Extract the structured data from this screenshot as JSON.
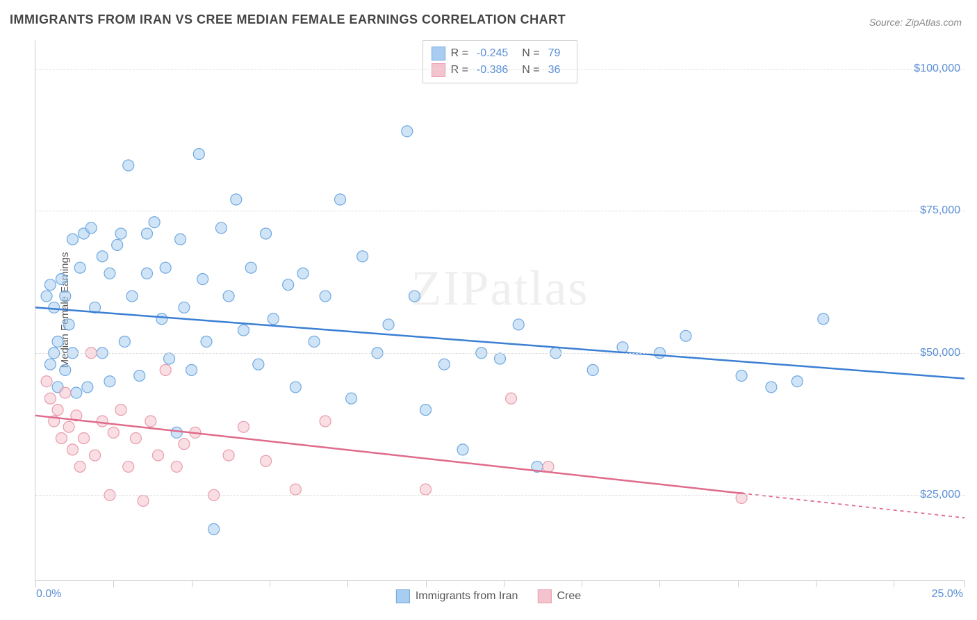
{
  "title": "IMMIGRANTS FROM IRAN VS CREE MEDIAN FEMALE EARNINGS CORRELATION CHART",
  "source": "Source: ZipAtlas.com",
  "ylabel": "Median Female Earnings",
  "watermark": "ZIPatlas",
  "chart": {
    "type": "scatter",
    "xlim": [
      0,
      25
    ],
    "ylim": [
      10000,
      105000
    ],
    "x_tick_positions": [
      0,
      2.1,
      4.2,
      6.3,
      8.4,
      10.5,
      12.6,
      14.7,
      16.8,
      18.9,
      21.0,
      23.1,
      25.0
    ],
    "x_labels": {
      "0": "0.0%",
      "25": "25.0%"
    },
    "y_gridlines": [
      25000,
      50000,
      75000,
      100000
    ],
    "y_labels": {
      "25000": "$25,000",
      "50000": "$50,000",
      "75000": "$75,000",
      "100000": "$100,000"
    },
    "grid_color": "#dddddd",
    "background_color": "#ffffff",
    "marker_radius": 8,
    "marker_opacity": 0.55,
    "series": [
      {
        "name": "Immigrants from Iran",
        "color_fill": "#a9cdf0",
        "color_stroke": "#6fa8e0",
        "line_color": "#3b7fd4",
        "R": -0.245,
        "N": 79,
        "trend": {
          "x1": 0,
          "y1": 58000,
          "x2": 25,
          "y2": 45500,
          "observed_xmax": 25
        },
        "points": [
          [
            0.3,
            60000
          ],
          [
            0.4,
            62000
          ],
          [
            0.4,
            48000
          ],
          [
            0.5,
            50000
          ],
          [
            0.5,
            58000
          ],
          [
            0.6,
            44000
          ],
          [
            0.6,
            52000
          ],
          [
            0.7,
            63000
          ],
          [
            0.8,
            60000
          ],
          [
            0.8,
            47000
          ],
          [
            0.9,
            55000
          ],
          [
            1.0,
            70000
          ],
          [
            1.0,
            50000
          ],
          [
            1.1,
            43000
          ],
          [
            1.2,
            65000
          ],
          [
            1.3,
            71000
          ],
          [
            1.4,
            44000
          ],
          [
            1.5,
            72000
          ],
          [
            1.6,
            58000
          ],
          [
            1.8,
            67000
          ],
          [
            1.8,
            50000
          ],
          [
            2.0,
            64000
          ],
          [
            2.0,
            45000
          ],
          [
            2.2,
            69000
          ],
          [
            2.3,
            71000
          ],
          [
            2.4,
            52000
          ],
          [
            2.5,
            83000
          ],
          [
            2.6,
            60000
          ],
          [
            2.8,
            46000
          ],
          [
            3.0,
            64000
          ],
          [
            3.0,
            71000
          ],
          [
            3.2,
            73000
          ],
          [
            3.4,
            56000
          ],
          [
            3.5,
            65000
          ],
          [
            3.6,
            49000
          ],
          [
            3.8,
            36000
          ],
          [
            3.9,
            70000
          ],
          [
            4.0,
            58000
          ],
          [
            4.2,
            47000
          ],
          [
            4.4,
            85000
          ],
          [
            4.5,
            63000
          ],
          [
            4.6,
            52000
          ],
          [
            4.8,
            19000
          ],
          [
            5.0,
            72000
          ],
          [
            5.2,
            60000
          ],
          [
            5.4,
            77000
          ],
          [
            5.6,
            54000
          ],
          [
            5.8,
            65000
          ],
          [
            6.0,
            48000
          ],
          [
            6.2,
            71000
          ],
          [
            6.4,
            56000
          ],
          [
            6.8,
            62000
          ],
          [
            7.0,
            44000
          ],
          [
            7.2,
            64000
          ],
          [
            7.5,
            52000
          ],
          [
            7.8,
            60000
          ],
          [
            8.2,
            77000
          ],
          [
            8.5,
            42000
          ],
          [
            8.8,
            67000
          ],
          [
            9.2,
            50000
          ],
          [
            9.5,
            55000
          ],
          [
            10.0,
            89000
          ],
          [
            10.2,
            60000
          ],
          [
            10.5,
            40000
          ],
          [
            11.0,
            48000
          ],
          [
            11.5,
            33000
          ],
          [
            12.0,
            50000
          ],
          [
            12.5,
            49000
          ],
          [
            13.0,
            55000
          ],
          [
            13.5,
            30000
          ],
          [
            14.0,
            50000
          ],
          [
            15.0,
            47000
          ],
          [
            15.8,
            51000
          ],
          [
            16.8,
            50000
          ],
          [
            17.5,
            53000
          ],
          [
            19.0,
            46000
          ],
          [
            19.8,
            44000
          ],
          [
            20.5,
            45000
          ],
          [
            21.2,
            56000
          ]
        ]
      },
      {
        "name": "Cree",
        "color_fill": "#f4c4ce",
        "color_stroke": "#e99aad",
        "line_color": "#e06a8a",
        "R": -0.386,
        "N": 36,
        "trend": {
          "x1": 0,
          "y1": 39000,
          "x2": 25,
          "y2": 21000,
          "observed_xmax": 19
        },
        "points": [
          [
            0.3,
            45000
          ],
          [
            0.4,
            42000
          ],
          [
            0.5,
            38000
          ],
          [
            0.6,
            40000
          ],
          [
            0.7,
            35000
          ],
          [
            0.8,
            43000
          ],
          [
            0.9,
            37000
          ],
          [
            1.0,
            33000
          ],
          [
            1.1,
            39000
          ],
          [
            1.2,
            30000
          ],
          [
            1.3,
            35000
          ],
          [
            1.5,
            50000
          ],
          [
            1.6,
            32000
          ],
          [
            1.8,
            38000
          ],
          [
            2.0,
            25000
          ],
          [
            2.1,
            36000
          ],
          [
            2.3,
            40000
          ],
          [
            2.5,
            30000
          ],
          [
            2.7,
            35000
          ],
          [
            2.9,
            24000
          ],
          [
            3.1,
            38000
          ],
          [
            3.3,
            32000
          ],
          [
            3.5,
            47000
          ],
          [
            3.8,
            30000
          ],
          [
            4.0,
            34000
          ],
          [
            4.3,
            36000
          ],
          [
            4.8,
            25000
          ],
          [
            5.2,
            32000
          ],
          [
            5.6,
            37000
          ],
          [
            6.2,
            31000
          ],
          [
            7.0,
            26000
          ],
          [
            7.8,
            38000
          ],
          [
            10.5,
            26000
          ],
          [
            12.8,
            42000
          ],
          [
            13.8,
            30000
          ],
          [
            19.0,
            24500
          ]
        ]
      }
    ]
  },
  "legend_top": {
    "rows": [
      {
        "color_fill": "#a9cdf0",
        "color_stroke": "#6fa8e0",
        "R": "-0.245",
        "N": "79"
      },
      {
        "color_fill": "#f4c4ce",
        "color_stroke": "#e99aad",
        "R": "-0.386",
        "N": "36"
      }
    ]
  },
  "legend_bottom": [
    {
      "label": "Immigrants from Iran",
      "color_fill": "#a9cdf0",
      "color_stroke": "#6fa8e0"
    },
    {
      "label": "Cree",
      "color_fill": "#f4c4ce",
      "color_stroke": "#e99aad"
    }
  ]
}
